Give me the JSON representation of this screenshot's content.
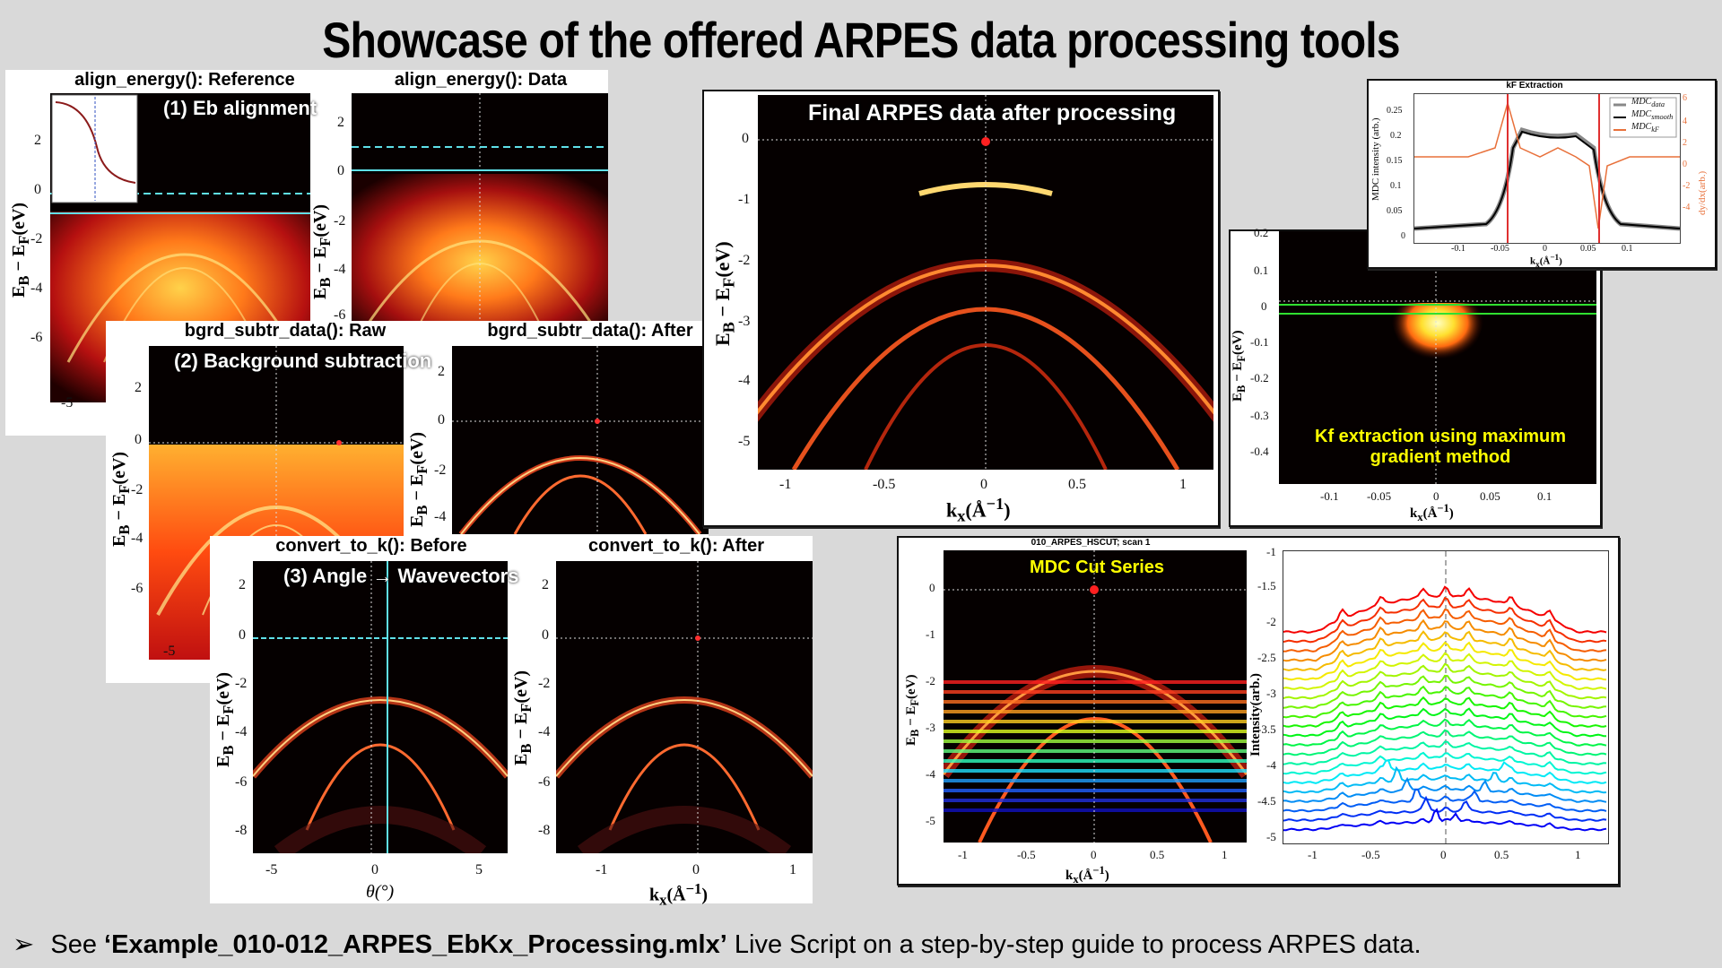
{
  "slide": {
    "title": "Showcase of the offered ARPES data processing tools",
    "footer_bullet": "➢",
    "footer_pre": "See ",
    "footer_file": "‘Example_010-012_ARPES_EbKx_Processing.mlx’",
    "footer_post": " Live Script on a step-by-step guide to process ARPES data."
  },
  "labels": {
    "eb": "E",
    "eb_sub": "B",
    "ef_minus": " − E",
    "ef_sub": "F",
    "ev": "(eV)",
    "kx": "k",
    "kx_sub": "x",
    "kx_unit": "(Å",
    "kx_exp": "−1",
    "kx_close": ")",
    "theta": "θ(°)",
    "intensity": "Intensity(arb.)",
    "mdc_intensity": "MDC intensity (arb.)",
    "dydx": "dy/dx(arb.)"
  },
  "panels": {
    "align_ref": {
      "title": "align_energy(): Reference",
      "overlay": "(1) Eb alignment",
      "yticks": [
        "2",
        "0",
        "-2",
        "-4",
        "-6"
      ],
      "xticks": [
        "-5"
      ]
    },
    "align_data": {
      "title": "align_energy(): Data",
      "yticks": [
        "2",
        "0",
        "-2",
        "-4",
        "-6"
      ]
    },
    "bgrd_raw": {
      "title": "bgrd_subtr_data(): Raw",
      "overlay": "(2) Background subtraction",
      "yticks": [
        "2",
        "0",
        "-2",
        "-4",
        "-6"
      ],
      "xticks": [
        "-5"
      ]
    },
    "bgrd_after": {
      "title": "bgrd_subtr_data(): After",
      "yticks": [
        "2",
        "0",
        "-2",
        "-4"
      ]
    },
    "conv_before": {
      "title": "convert_to_k(): Before",
      "overlay": "(3) Angle → Wavevectors",
      "yticks": [
        "2",
        "0",
        "-2",
        "-4",
        "-6",
        "-8"
      ],
      "xticks": [
        "-5",
        "0",
        "5"
      ]
    },
    "conv_after": {
      "title": "convert_to_k(): After",
      "yticks": [
        "2",
        "0",
        "-2",
        "-4",
        "-6",
        "-8"
      ],
      "xticks": [
        "-1",
        "0",
        "1"
      ]
    },
    "final": {
      "overlay": "Final ARPES data after processing",
      "yticks": [
        "0",
        "-1",
        "-2",
        "-3",
        "-4",
        "-5"
      ],
      "xticks": [
        "-1",
        "-0.5",
        "0",
        "0.5",
        "1"
      ]
    },
    "kf_map": {
      "overlay_line1": "Kf extraction using maximum",
      "overlay_line2": "gradient method",
      "yticks": [
        "0.2",
        "0.1",
        "0",
        "-0.1",
        "-0.2",
        "-0.3",
        "-0.4"
      ],
      "xticks": [
        "-0.1",
        "-0.05",
        "0",
        "0.05",
        "0.1"
      ]
    },
    "kf_extract": {
      "title": "kF Extraction",
      "yticks": [
        "0.25",
        "0.2",
        "0.15",
        "0.1",
        "0.05",
        "0"
      ],
      "y2ticks": [
        "6",
        "4",
        "2",
        "0",
        "-2",
        "-4"
      ],
      "xticks": [
        "-0.1",
        "-0.05",
        "0",
        "0.05",
        "0.1"
      ],
      "legend": [
        {
          "name": "MDC",
          "sub": "data",
          "color": "#888888"
        },
        {
          "name": "MDC",
          "sub": "smooth",
          "color": "#000000"
        },
        {
          "name": "MDC",
          "sub": "kF",
          "color": "#e8703a"
        }
      ]
    },
    "mdc_map": {
      "title": "010_ARPES_HSCUT; scan 1",
      "overlay": "MDC Cut Series",
      "yticks": [
        "0",
        "-1",
        "-2",
        "-3",
        "-4",
        "-5"
      ],
      "xticks": [
        "-1",
        "-0.5",
        "0",
        "0.5",
        "1"
      ]
    },
    "mdc_stack": {
      "yticks": [
        "-1",
        "-1.5",
        "-2",
        "-2.5",
        "-3",
        "-3.5",
        "-4",
        "-4.5",
        "-5"
      ],
      "xticks": [
        "-1",
        "-0.5",
        "0",
        "0.5",
        "1"
      ]
    }
  },
  "colors": {
    "background": "#d9d9d9",
    "cyan_line": "#5fe0e8",
    "overlay_yellow": "#ffff00",
    "kf_red": "#e03030",
    "kf_orange": "#e8703a"
  }
}
